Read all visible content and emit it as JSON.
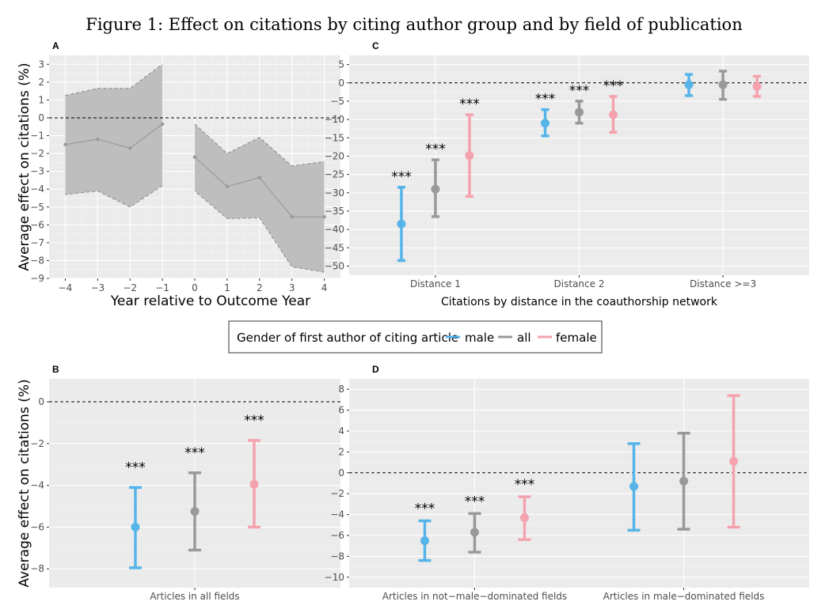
{
  "figure_title": "Figure 1: Effect on citations by citing author group and by field of publication",
  "colors": {
    "male": "#56B4E9",
    "all": "#999999",
    "female": "#F4A3AE",
    "panel_bg": "#EBEBEB",
    "band": "#BEBEBE",
    "band_line": "#999999"
  },
  "legend": {
    "title": "Gender of first author of citing article",
    "items": [
      {
        "key": "male",
        "label": "male"
      },
      {
        "key": "all",
        "label": "all"
      },
      {
        "key": "female",
        "label": "female"
      }
    ]
  },
  "chart_data": [
    {
      "panel": "A",
      "type": "line",
      "title": "",
      "xlabel": "Year relative to Outcome Year",
      "ylabel": "Average effect on citations (%)",
      "xlim": [
        -4.5,
        4.5
      ],
      "ylim": [
        -9,
        3.5
      ],
      "xticks": [
        -4,
        -3,
        -2,
        -1,
        0,
        1,
        2,
        3,
        4
      ],
      "yticks": [
        3,
        2,
        1,
        0,
        -1,
        -2,
        -3,
        -4,
        -5,
        -6,
        -7,
        -8,
        -9
      ],
      "segments": [
        {
          "x": [
            -4,
            -3,
            -2,
            -1
          ],
          "estimate": [
            -1.5,
            -1.2,
            -1.7,
            -0.35
          ],
          "lower": [
            -4.3,
            -4.1,
            -5.0,
            -3.8
          ],
          "upper": [
            1.25,
            1.65,
            1.65,
            3.0
          ]
        },
        {
          "x": [
            0,
            1,
            2,
            3,
            4
          ],
          "estimate": [
            -2.2,
            -3.85,
            -3.35,
            -5.55,
            -5.55
          ],
          "lower": [
            -4.1,
            -5.65,
            -5.6,
            -8.35,
            -8.65
          ],
          "upper": [
            -0.35,
            -2.0,
            -1.1,
            -2.7,
            -2.45
          ]
        }
      ]
    },
    {
      "panel": "C",
      "type": "scatter",
      "title": "",
      "xlabel": "Citations by distance in the coauthorship network",
      "ylabel": "",
      "ylim": [
        -52.5,
        7.5
      ],
      "yticks": [
        5,
        0,
        -5,
        -10,
        -15,
        -20,
        -25,
        -30,
        -35,
        -40,
        -45,
        -50
      ],
      "categories": [
        "Distance 1",
        "Distance 2",
        "Distance >=3"
      ],
      "series": [
        {
          "name": "male",
          "estimate": [
            -38.5,
            -11.0,
            -0.5
          ],
          "lower": [
            -48.5,
            -14.5,
            -3.5
          ],
          "upper": [
            -28.5,
            -7.3,
            2.3
          ],
          "stars": [
            "***",
            "***",
            ""
          ]
        },
        {
          "name": "all",
          "estimate": [
            -29.0,
            -8.0,
            -0.5
          ],
          "lower": [
            -36.5,
            -11.0,
            -4.5
          ],
          "upper": [
            -21.0,
            -5.0,
            3.2
          ],
          "stars": [
            "***",
            "***",
            ""
          ]
        },
        {
          "name": "female",
          "estimate": [
            -19.8,
            -8.7,
            -1.0
          ],
          "lower": [
            -31.0,
            -13.5,
            -3.7
          ],
          "upper": [
            -8.7,
            -3.7,
            1.8
          ],
          "stars": [
            "***",
            "***",
            ""
          ]
        }
      ]
    },
    {
      "panel": "B",
      "type": "scatter",
      "title": "",
      "xlabel": "",
      "ylabel": "Average effect on citations (%)",
      "ylim": [
        -8.9,
        1.1
      ],
      "yticks": [
        0,
        -2,
        -4,
        -6,
        -8
      ],
      "categories": [
        "Articles in all fields"
      ],
      "series": [
        {
          "name": "male",
          "estimate": [
            -6.0
          ],
          "lower": [
            -7.95
          ],
          "upper": [
            -4.1
          ],
          "stars": [
            "***"
          ]
        },
        {
          "name": "all",
          "estimate": [
            -5.25
          ],
          "lower": [
            -7.1
          ],
          "upper": [
            -3.4
          ],
          "stars": [
            "***"
          ]
        },
        {
          "name": "female",
          "estimate": [
            -3.95
          ],
          "lower": [
            -6.0
          ],
          "upper": [
            -1.85
          ],
          "stars": [
            "***"
          ]
        }
      ]
    },
    {
      "panel": "D",
      "type": "scatter",
      "title": "",
      "xlabel": "",
      "ylabel": "",
      "ylim": [
        -11,
        9
      ],
      "yticks": [
        8,
        6,
        4,
        2,
        0,
        -2,
        -4,
        -6,
        -8,
        -10
      ],
      "categories": [
        "Articles in not−male−dominated fields",
        "Articles in male−dominated fields"
      ],
      "series": [
        {
          "name": "male",
          "estimate": [
            -6.5,
            -1.3
          ],
          "lower": [
            -8.4,
            -5.5
          ],
          "upper": [
            -4.6,
            2.8
          ],
          "stars": [
            "***",
            ""
          ]
        },
        {
          "name": "all",
          "estimate": [
            -5.7,
            -0.8
          ],
          "lower": [
            -7.6,
            -5.4
          ],
          "upper": [
            -3.9,
            3.8
          ],
          "stars": [
            "***",
            ""
          ]
        },
        {
          "name": "female",
          "estimate": [
            -4.3,
            1.1
          ],
          "lower": [
            -6.4,
            -5.2
          ],
          "upper": [
            -2.3,
            7.4
          ],
          "stars": [
            "***",
            ""
          ]
        }
      ]
    }
  ]
}
